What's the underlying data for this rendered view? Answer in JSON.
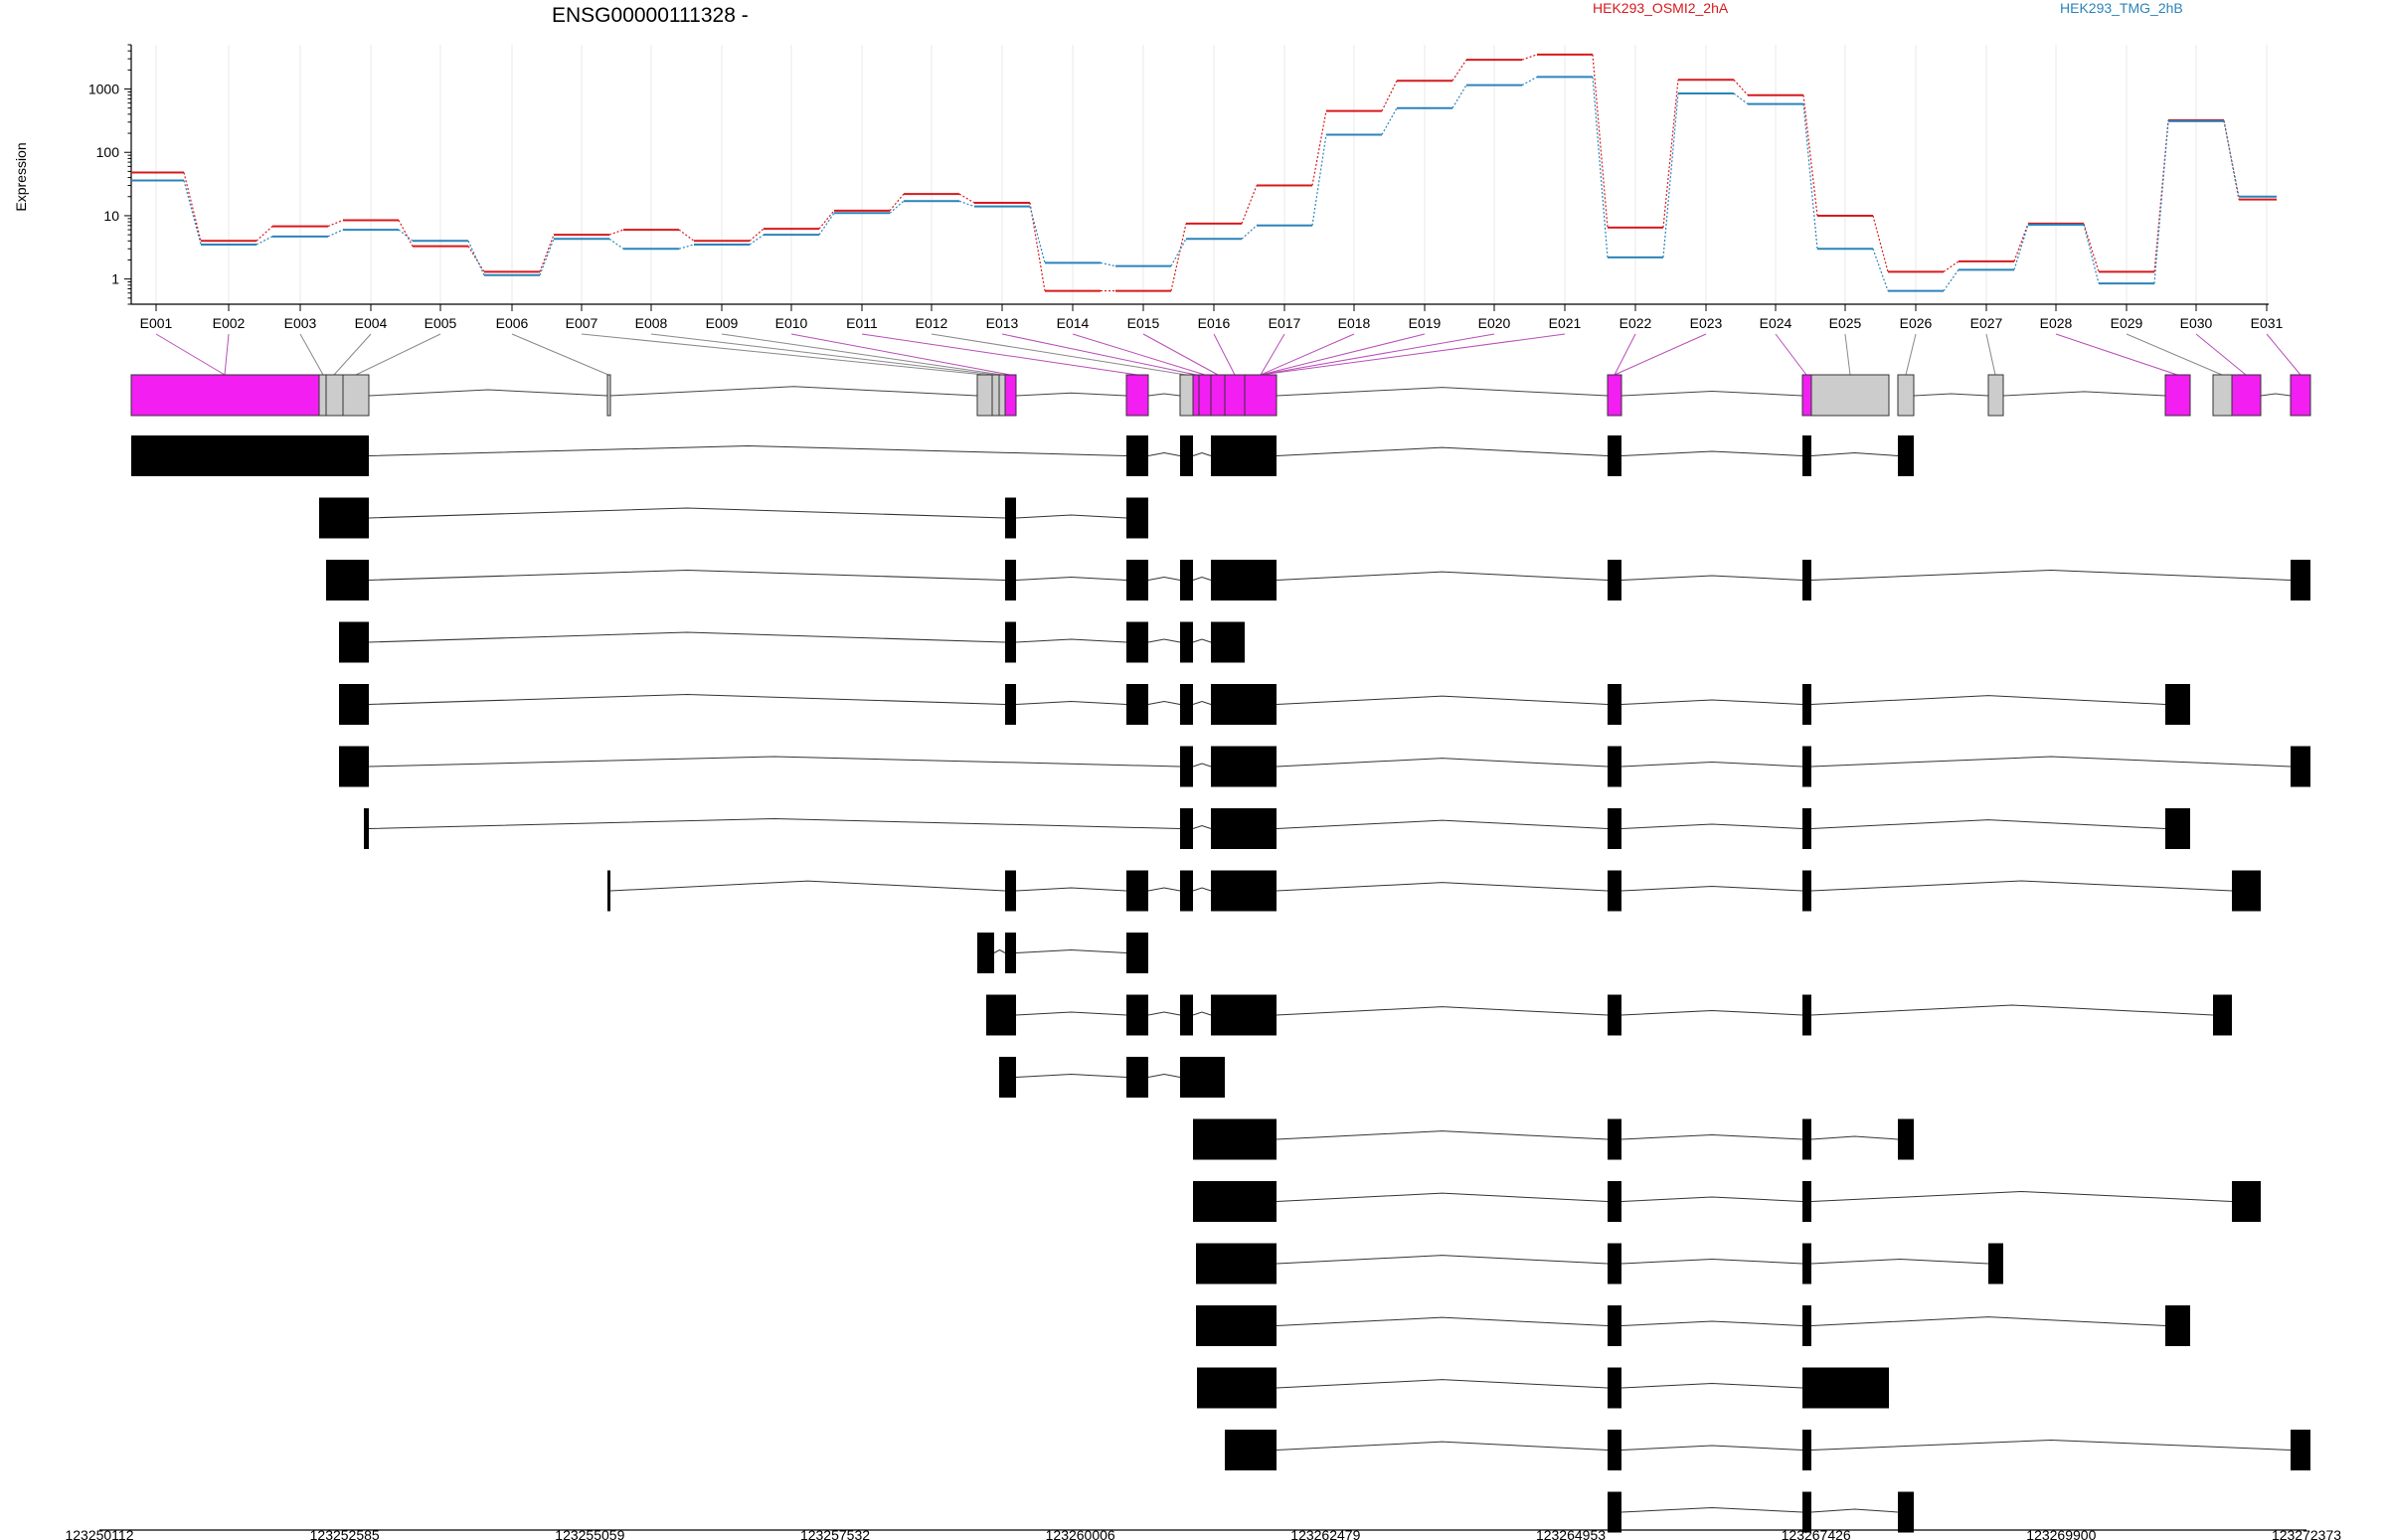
{
  "chart_data": {
    "type": "line",
    "title": "ENSG00000111328 -",
    "ylabel": "Expression",
    "y_scale": "log10",
    "y_ticks": [
      "1",
      "10",
      "100",
      "1000"
    ],
    "ylim": [
      0.4,
      5000
    ],
    "exons": [
      "E001",
      "E002",
      "E003",
      "E004",
      "E005",
      "E006",
      "E007",
      "E008",
      "E009",
      "E010",
      "E011",
      "E012",
      "E013",
      "E014",
      "E015",
      "E016",
      "E017",
      "E018",
      "E019",
      "E020",
      "E021",
      "E022",
      "E023",
      "E024",
      "E025",
      "E026",
      "E027",
      "E028",
      "E029",
      "E030",
      "E031"
    ],
    "series": [
      {
        "name": "HEK293_OSMI2_2hA",
        "color": "#d7191c",
        "values": [
          48,
          4,
          6.8,
          8.5,
          3.3,
          1.3,
          5,
          6,
          4,
          6.2,
          12,
          22,
          16,
          0.65,
          0.65,
          7.5,
          30,
          450,
          1350,
          2900,
          3500,
          6.5,
          1400,
          800,
          10,
          1.3,
          1.9,
          7.5,
          1.3,
          320,
          18
        ]
      },
      {
        "name": "HEK293_TMG_2hB",
        "color": "#2b83ba",
        "values": [
          36,
          3.5,
          4.7,
          6,
          4,
          1.15,
          4.3,
          3,
          3.5,
          5,
          11,
          17,
          14,
          1.8,
          1.6,
          4.3,
          7,
          190,
          500,
          1150,
          1550,
          2.2,
          850,
          580,
          3,
          0.65,
          1.4,
          7.2,
          0.85,
          310,
          20
        ]
      }
    ],
    "genomic_axis_labels": [
      "123250112",
      "123252585",
      "123255059",
      "123257532",
      "123260006",
      "123262479",
      "123264953",
      "123267426",
      "123269900",
      "123272373"
    ],
    "grid": true
  }
}
